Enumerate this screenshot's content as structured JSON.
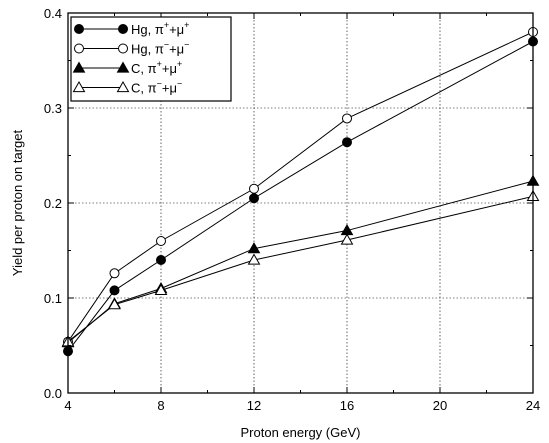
{
  "chart_data": {
    "type": "line",
    "x": [
      4,
      6,
      8,
      12,
      16,
      24
    ],
    "xlabel": "Proton energy (GeV)",
    "ylabel": "Yield per proton on target",
    "xlim": [
      4,
      24
    ],
    "ylim": [
      0.0,
      0.4
    ],
    "x_ticks": [
      4,
      8,
      12,
      16,
      20,
      24
    ],
    "x_tick_labels": [
      "4",
      "8",
      "12",
      "16",
      "20",
      "24"
    ],
    "y_ticks": [
      0.0,
      0.1,
      0.2,
      0.3,
      0.4
    ],
    "y_tick_labels": [
      "0.0",
      "0.1",
      "0.2",
      "0.3",
      "0.4"
    ],
    "grid": true,
    "legend_position": "top-left",
    "series": [
      {
        "name": "Hg, π⁺+μ⁺",
        "label_base": "Hg,",
        "sup1": "+",
        "sup2": "+",
        "marker": "circle",
        "filled": true,
        "values": [
          0.044,
          0.108,
          0.14,
          0.205,
          0.264,
          0.37
        ]
      },
      {
        "name": "Hg, π⁻+μ⁻",
        "label_base": "Hg,",
        "sup1": "−",
        "sup2": "−",
        "marker": "circle",
        "filled": false,
        "values": [
          0.054,
          0.126,
          0.16,
          0.215,
          0.289,
          0.38
        ]
      },
      {
        "name": "C, π⁺+μ⁺",
        "label_base": "C,",
        "sup1": "+",
        "sup2": "+",
        "marker": "triangle",
        "filled": true,
        "values": [
          0.053,
          0.094,
          0.11,
          0.152,
          0.171,
          0.223
        ]
      },
      {
        "name": "C, π⁻+μ⁻",
        "label_base": "C,",
        "sup1": "−",
        "sup2": "−",
        "marker": "triangle",
        "filled": false,
        "values": [
          0.054,
          0.093,
          0.108,
          0.14,
          0.161,
          0.207
        ]
      }
    ]
  }
}
